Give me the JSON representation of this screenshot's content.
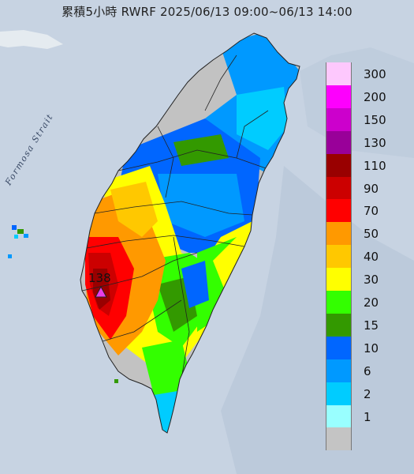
{
  "title": "累積5小時 RWRF 2025/06/13 09:00~06/13 14:00",
  "strait_label": "Formosa Strait",
  "max_value_label": "138",
  "colors": {
    "sea": "#c7d3e2",
    "land_dry": "#c2c2c2",
    "marker": "#e83ee8"
  },
  "legend": [
    {
      "label": "300",
      "color": "#fdc8fd"
    },
    {
      "label": "200",
      "color": "#fd00fd"
    },
    {
      "label": "150",
      "color": "#cc00cc"
    },
    {
      "label": "130",
      "color": "#990099"
    },
    {
      "label": "110",
      "color": "#990000"
    },
    {
      "label": "90",
      "color": "#cc0000"
    },
    {
      "label": "70",
      "color": "#ff0000"
    },
    {
      "label": "50",
      "color": "#ff9900"
    },
    {
      "label": "40",
      "color": "#ffc800"
    },
    {
      "label": "30",
      "color": "#ffff00"
    },
    {
      "label": "20",
      "color": "#33ff00"
    },
    {
      "label": "15",
      "color": "#339900"
    },
    {
      "label": "10",
      "color": "#0066ff"
    },
    {
      "label": "6",
      "color": "#0099ff"
    },
    {
      "label": "2",
      "color": "#00ccff"
    },
    {
      "label": "1",
      "color": "#99ffff"
    },
    {
      "label": "",
      "color": "#c4c4c4"
    }
  ]
}
